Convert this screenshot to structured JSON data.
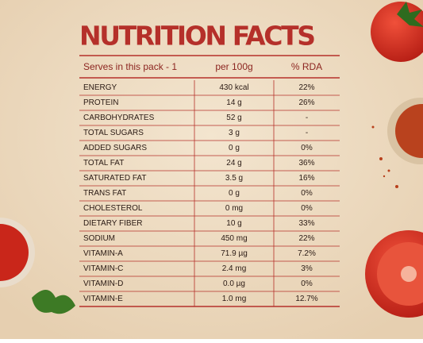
{
  "title": "NUTRITION FACTS",
  "table": {
    "header": [
      "Serves in this pack - 1",
      "per 100g",
      "% RDA"
    ],
    "rows": [
      [
        "ENERGY",
        "430 kcal",
        "22%"
      ],
      [
        "PROTEIN",
        "14 g",
        "26%"
      ],
      [
        "CARBOHYDRATES",
        "52 g",
        "-"
      ],
      [
        "TOTAL SUGARS",
        "3 g",
        "-"
      ],
      [
        "ADDED SUGARS",
        "0 g",
        "0%"
      ],
      [
        "TOTAL FAT",
        "24 g",
        "36%"
      ],
      [
        "SATURATED FAT",
        "3.5 g",
        "16%"
      ],
      [
        "TRANS FAT",
        "0 g",
        "0%"
      ],
      [
        "CHOLESTEROL",
        "0 mg",
        "0%"
      ],
      [
        "DIETARY FIBER",
        "10 g",
        "33%"
      ],
      [
        "SODIUM",
        "450 mg",
        "22%"
      ],
      [
        "VITAMIN-A",
        "71.9 µg",
        "7.2%"
      ],
      [
        "VITAMIN-C",
        "2.4 mg",
        "3%"
      ],
      [
        "VITAMIN-D",
        "0.0 µg",
        "0%"
      ],
      [
        "VITAMIN-E",
        "1.0 mg",
        "12.7%"
      ]
    ]
  }
}
